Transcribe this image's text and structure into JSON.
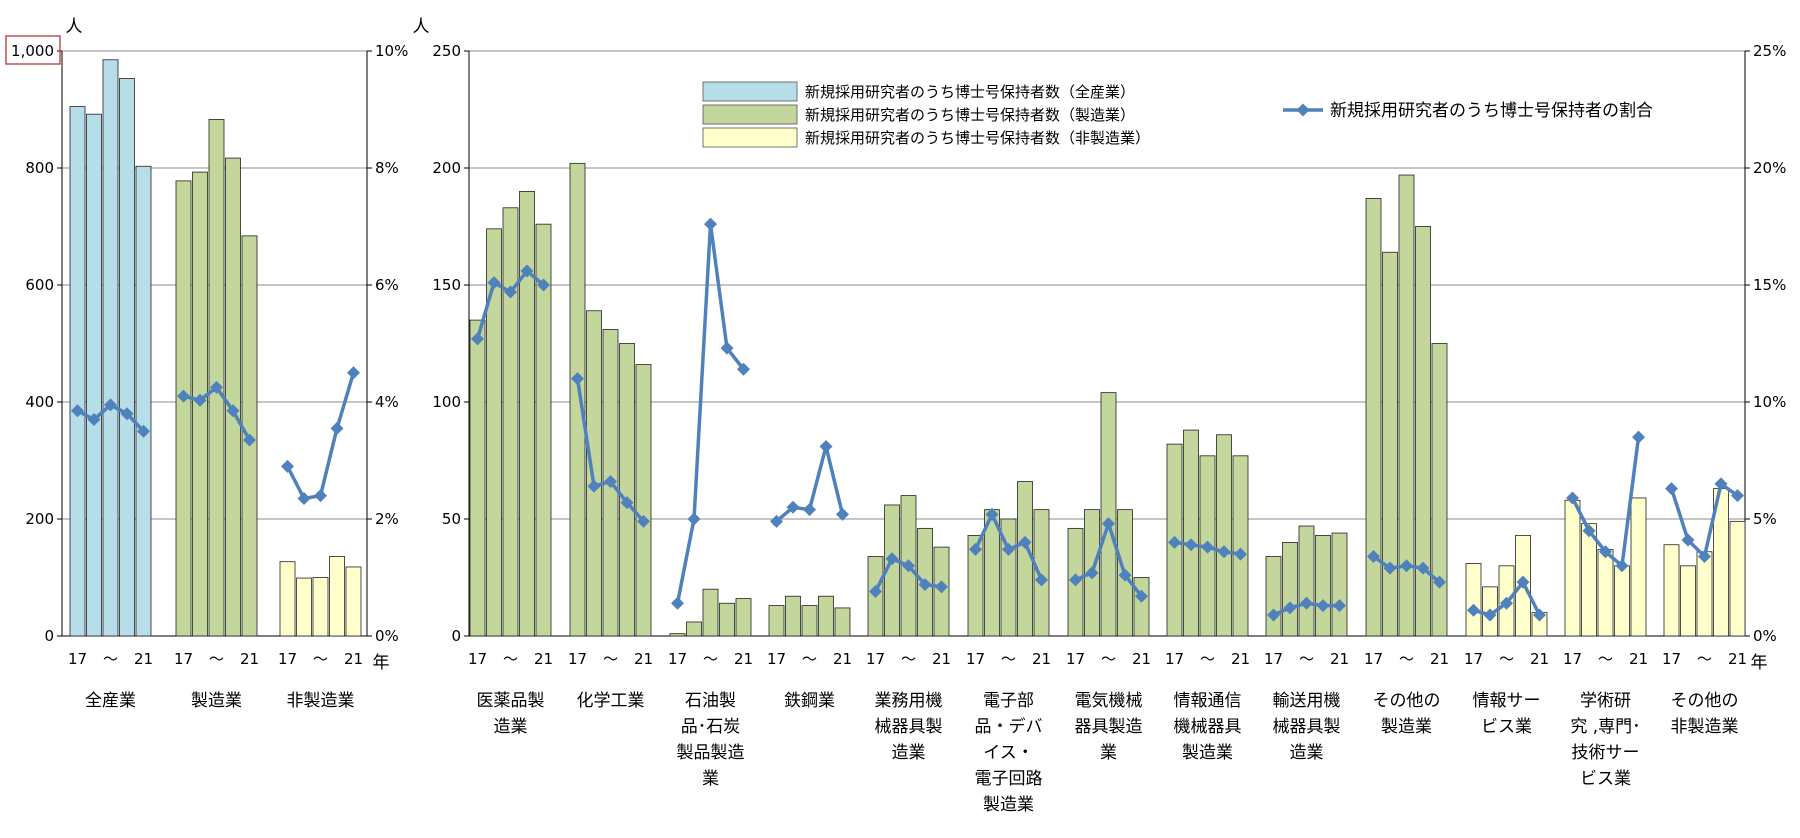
{
  "chart_data": [
    {
      "type": "bar",
      "panel": "left",
      "y_left": {
        "unit": "人",
        "min": 0,
        "max": 1000,
        "ticks": [
          "0",
          "200",
          "400",
          "600",
          "800",
          "1,000"
        ],
        "highlighted_tick": "1,000"
      },
      "y_right": {
        "min": 0,
        "max": 10,
        "ticks": [
          "0%",
          "2%",
          "4%",
          "6%",
          "8%",
          "10%"
        ]
      },
      "x_unit": "年",
      "year_labels": [
        "17",
        "～",
        "21"
      ],
      "groups": [
        {
          "label_lines": [
            "全産業"
          ],
          "color": "#b7dde8",
          "bars": [
            905,
            892,
            985,
            953,
            803
          ],
          "ratio": [
            3.85,
            3.7,
            3.95,
            3.8,
            3.5
          ]
        },
        {
          "label_lines": [
            "製造業"
          ],
          "color": "#c3d69b",
          "bars": [
            778,
            793,
            883,
            817,
            684
          ],
          "ratio": [
            4.1,
            4.03,
            4.25,
            3.85,
            3.35
          ]
        },
        {
          "label_lines": [
            "非製造業"
          ],
          "color": "#ffffcc",
          "bars": [
            127,
            99,
            100,
            136,
            118
          ],
          "ratio": [
            2.9,
            2.35,
            2.4,
            3.55,
            4.5
          ]
        }
      ]
    },
    {
      "type": "bar",
      "panel": "right",
      "y_left": {
        "unit": "人",
        "min": 0,
        "max": 250,
        "ticks": [
          "0",
          "50",
          "100",
          "150",
          "200",
          "250"
        ]
      },
      "y_right": {
        "min": 0,
        "max": 25,
        "ticks": [
          "0%",
          "5%",
          "10%",
          "15%",
          "20%",
          "25%"
        ]
      },
      "x_unit": "年",
      "year_labels": [
        "17",
        "～",
        "21"
      ],
      "legend": {
        "bars": [
          {
            "label": "新規採用研究者のうち博士号保持者数（全産業）",
            "color": "#b7dde8"
          },
          {
            "label": "新規採用研究者のうち博士号保持者数（製造業）",
            "color": "#c3d69b"
          },
          {
            "label": "新規採用研究者のうち博士号保持者数（非製造業）",
            "color": "#ffffcc"
          }
        ],
        "line": {
          "label": "新規採用研究者のうち博士号保持者の割合",
          "color": "#4f81bd"
        }
      },
      "groups": [
        {
          "label_lines": [
            "医薬品製",
            "造業"
          ],
          "color": "#c3d69b",
          "bars": [
            135,
            174,
            183,
            190,
            176
          ],
          "ratio": [
            12.7,
            15.1,
            14.7,
            15.6,
            15.0
          ]
        },
        {
          "label_lines": [
            "化学工業"
          ],
          "color": "#c3d69b",
          "bars": [
            202,
            139,
            131,
            125,
            116
          ],
          "ratio": [
            11.0,
            6.4,
            6.6,
            5.7,
            4.9
          ]
        },
        {
          "label_lines": [
            "石油製",
            "品･石炭",
            "製品製造",
            "業"
          ],
          "color": "#c3d69b",
          "bars": [
            1,
            6,
            20,
            14,
            16
          ],
          "ratio": [
            1.4,
            5.0,
            17.6,
            12.3,
            11.4
          ]
        },
        {
          "label_lines": [
            "鉄鋼業"
          ],
          "color": "#c3d69b",
          "bars": [
            13,
            17,
            13,
            17,
            12
          ],
          "ratio": [
            4.9,
            5.5,
            5.4,
            8.1,
            5.2
          ]
        },
        {
          "label_lines": [
            "業務用機",
            "械器具製",
            "造業"
          ],
          "color": "#c3d69b",
          "bars": [
            34,
            56,
            60,
            46,
            38
          ],
          "ratio": [
            1.9,
            3.3,
            3.0,
            2.2,
            2.1
          ]
        },
        {
          "label_lines": [
            "電子部",
            "品・デバ",
            "イス・",
            "電子回路",
            "製造業"
          ],
          "color": "#c3d69b",
          "bars": [
            43,
            54,
            50,
            66,
            54
          ],
          "ratio": [
            3.7,
            5.2,
            3.7,
            4.0,
            2.4
          ]
        },
        {
          "label_lines": [
            "電気機械",
            "器具製造",
            "業"
          ],
          "color": "#c3d69b",
          "bars": [
            46,
            54,
            104,
            54,
            25
          ],
          "ratio": [
            2.4,
            2.7,
            4.8,
            2.6,
            1.7
          ]
        },
        {
          "label_lines": [
            "情報通信",
            "機械器具",
            "製造業"
          ],
          "color": "#c3d69b",
          "bars": [
            82,
            88,
            77,
            86,
            77
          ],
          "ratio": [
            4.0,
            3.9,
            3.8,
            3.6,
            3.5
          ]
        },
        {
          "label_lines": [
            "輸送用機",
            "械器具製",
            "造業"
          ],
          "color": "#c3d69b",
          "bars": [
            34,
            40,
            47,
            43,
            44
          ],
          "ratio": [
            0.9,
            1.2,
            1.4,
            1.3,
            1.3
          ]
        },
        {
          "label_lines": [
            "その他の",
            "製造業"
          ],
          "color": "#c3d69b",
          "bars": [
            187,
            164,
            197,
            175,
            125
          ],
          "ratio": [
            3.4,
            2.9,
            3.0,
            2.9,
            2.3
          ]
        },
        {
          "label_lines": [
            "情報サー",
            "ビス業"
          ],
          "color": "#ffffcc",
          "bars": [
            31,
            21,
            30,
            43,
            10
          ],
          "ratio": [
            1.1,
            0.9,
            1.4,
            2.3,
            0.9
          ]
        },
        {
          "label_lines": [
            "学術研",
            "究 ,専門･",
            "技術サー",
            "ビス業"
          ],
          "color": "#ffffcc",
          "bars": [
            58,
            48,
            37,
            30,
            59
          ],
          "ratio": [
            5.9,
            4.5,
            3.6,
            3.0,
            8.5
          ]
        },
        {
          "label_lines": [
            "その他の",
            "非製造業"
          ],
          "color": "#ffffcc",
          "bars": [
            39,
            30,
            36,
            63,
            49
          ],
          "ratio": [
            6.3,
            4.1,
            3.4,
            6.5,
            6.0
          ]
        }
      ]
    }
  ]
}
